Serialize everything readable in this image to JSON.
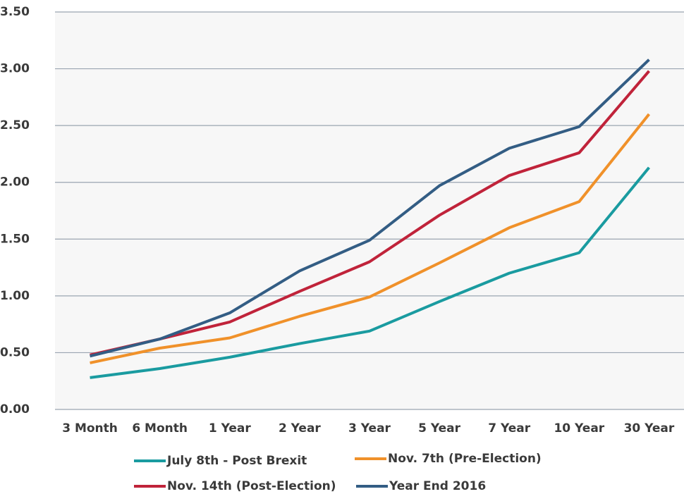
{
  "chart_data": {
    "type": "line",
    "categories": [
      "3 Month",
      "6 Month",
      "1 Year",
      "2 Year",
      "3 Year",
      "5 Year",
      "7 Year",
      "10 Year",
      "30 Year"
    ],
    "series": [
      {
        "name": "July 8th - Post Brexit",
        "color": "#1a9ba0",
        "values": [
          0.28,
          0.36,
          0.46,
          0.58,
          0.69,
          0.95,
          1.2,
          1.38,
          2.13
        ]
      },
      {
        "name": "Nov. 7th (Pre-Election)",
        "color": "#f0912a",
        "values": [
          0.41,
          0.54,
          0.63,
          0.82,
          0.99,
          1.29,
          1.6,
          1.83,
          2.6
        ]
      },
      {
        "name": "Nov. 14th (Post-Election)",
        "color": "#c0233a",
        "values": [
          0.48,
          0.62,
          0.77,
          1.04,
          1.3,
          1.71,
          2.06,
          2.26,
          2.98
        ]
      },
      {
        "name": "Year End 2016",
        "color": "#335d84",
        "values": [
          0.47,
          0.62,
          0.85,
          1.22,
          1.49,
          1.97,
          2.3,
          2.49,
          3.08
        ]
      }
    ],
    "ylim": [
      0,
      3.5
    ],
    "yticks": [
      {
        "value": 0,
        "label": "0.00"
      },
      {
        "value": 0.5,
        "label": "0.50"
      },
      {
        "value": 1,
        "label": "1.00"
      },
      {
        "value": 1.5,
        "label": "1.50"
      },
      {
        "value": 2,
        "label": "2.00"
      },
      {
        "value": 2.5,
        "label": "2.50"
      },
      {
        "value": 3,
        "label": "3.00"
      },
      {
        "value": 3.5,
        "label": "3.50"
      }
    ],
    "grid": true
  }
}
